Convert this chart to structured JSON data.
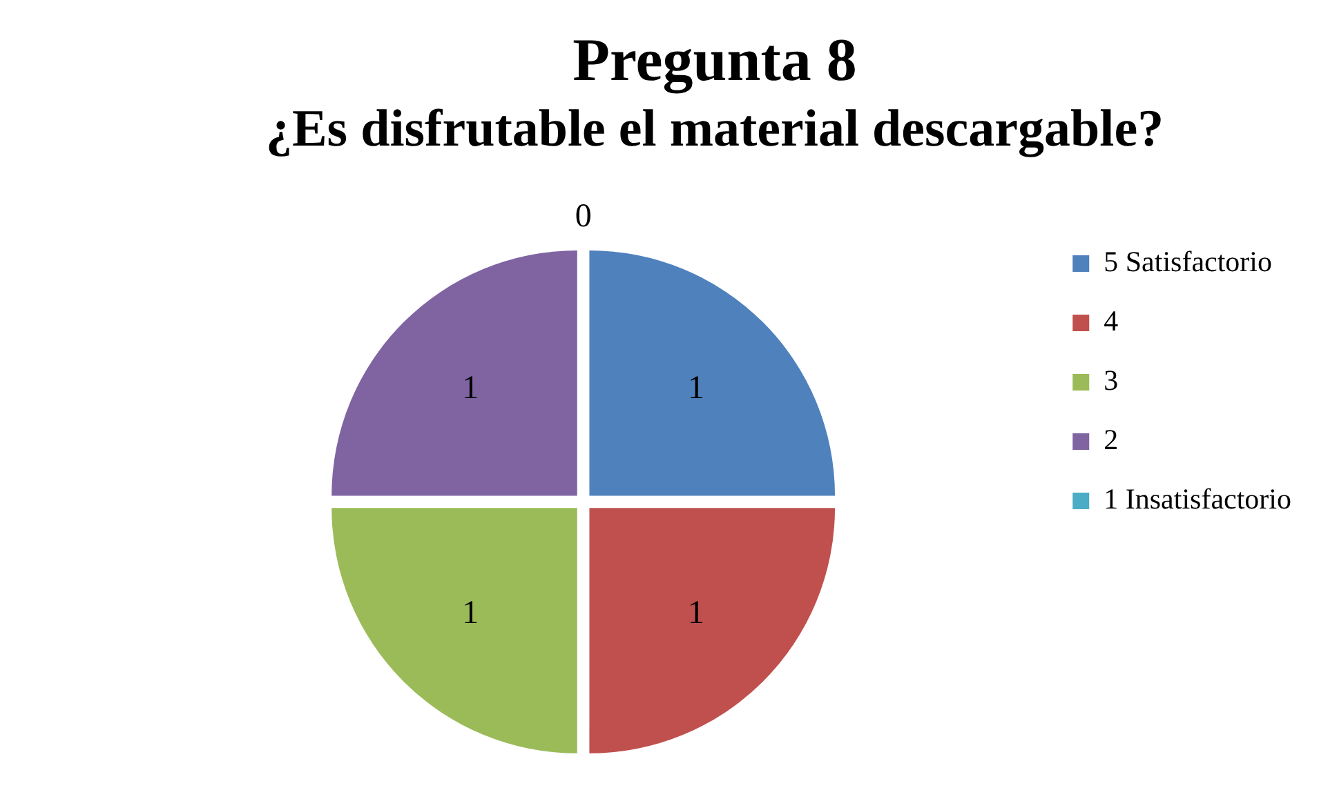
{
  "chart_data": {
    "type": "pie",
    "title": "Pregunta 8",
    "subtitle": "¿Es disfrutable el material descargable?",
    "categories": [
      "5 Satisfactorio",
      "4",
      "3",
      "2",
      "1 Insatisfactorio"
    ],
    "values": [
      1,
      1,
      1,
      1,
      0
    ],
    "colors": [
      "#4f81bd",
      "#c0504d",
      "#9bbb59",
      "#8064a2",
      "#4bacc6"
    ],
    "value_labels": [
      "1",
      "1",
      "1",
      "1",
      "0"
    ],
    "legend": "right"
  }
}
